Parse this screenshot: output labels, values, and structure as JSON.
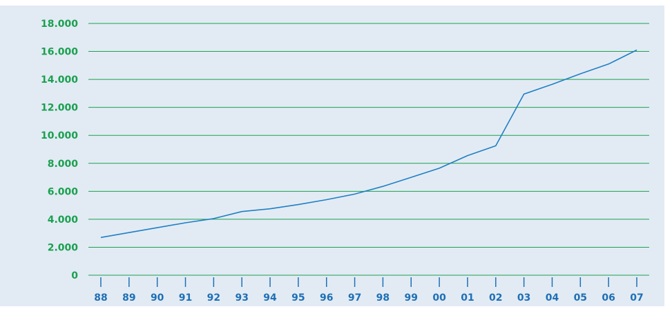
{
  "chart_data": {
    "type": "line",
    "title": "",
    "xlabel": "",
    "ylabel": "",
    "categories": [
      "88",
      "89",
      "90",
      "91",
      "92",
      "93",
      "94",
      "95",
      "96",
      "97",
      "98",
      "99",
      "00",
      "01",
      "02",
      "03",
      "04",
      "05",
      "06",
      "07"
    ],
    "series": [
      {
        "values": [
          2700,
          3050,
          3400,
          3750,
          4050,
          4550,
          4750,
          5050,
          5400,
          5800,
          6350,
          7000,
          7650,
          8550,
          9250,
          12950,
          13650,
          14400,
          15100,
          16100
        ]
      }
    ],
    "yticks": [
      "0",
      "2.000",
      "4.000",
      "6.000",
      "8.000",
      "10.000",
      "12.000",
      "14.000",
      "16.000",
      "18.000"
    ],
    "ylim": [
      0,
      18000
    ],
    "grid": true,
    "colors": {
      "background": "#e2ebf4",
      "grid": "#1aa04e",
      "ytick_text": "#1aa04e",
      "xtick_text": "#1f6fb5",
      "line": "#1f7fc4",
      "xtick_marks": "#1f6fb5"
    }
  }
}
